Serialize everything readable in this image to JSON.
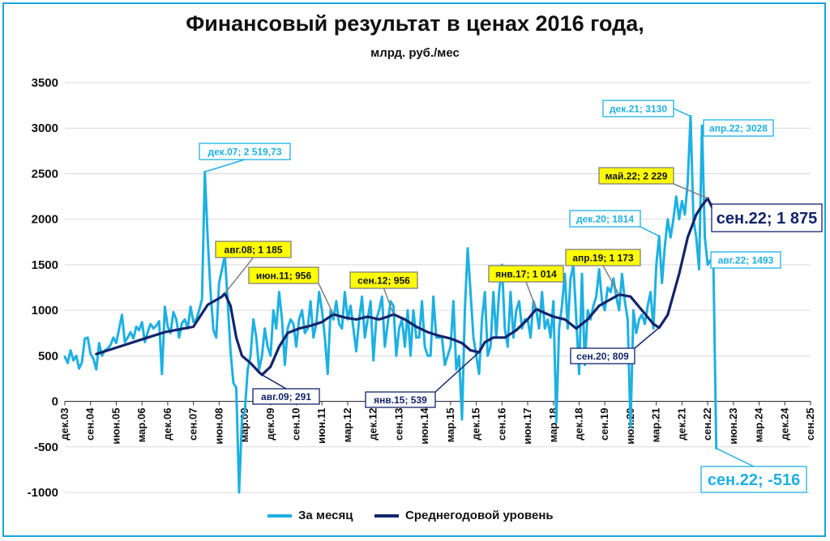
{
  "chart_data": {
    "type": "line",
    "title": "Финансовый результат в ценах 2016 года,",
    "subtitle": "млрд. руб./мес",
    "ylim": [
      -1000,
      3500
    ],
    "y_ticks": [
      "3500",
      "3000",
      "2500",
      "2000",
      "1500",
      "1000",
      "500",
      "0",
      "-500",
      "-1000"
    ],
    "x_ticks": [
      "дек.03",
      "сен.04",
      "июн.05",
      "мар.06",
      "дек.06",
      "сен.07",
      "июн.08",
      "мар.09",
      "дек.09",
      "сен.10",
      "июн.11",
      "мар.12",
      "дек.12",
      "сен.13",
      "июн.14",
      "мар.15",
      "дек.15",
      "сен.16",
      "июн.17",
      "мар.18",
      "дек.18",
      "сен.19",
      "июн.20",
      "мар.21",
      "дек.21",
      "сен.22",
      "июн.23",
      "мар.24",
      "дек.24",
      "сен.25"
    ],
    "grid": true,
    "legend_position": "bottom",
    "series": [
      {
        "name": "За месяц",
        "color": "#1eb0e3",
        "points": [
          [
            0,
            490
          ],
          [
            1,
            420
          ],
          [
            2,
            560
          ],
          [
            3,
            450
          ],
          [
            4,
            500
          ],
          [
            5,
            360
          ],
          [
            6,
            430
          ],
          [
            7,
            690
          ],
          [
            8,
            700
          ],
          [
            9,
            520
          ],
          [
            10,
            470
          ],
          [
            11,
            350
          ],
          [
            12,
            640
          ],
          [
            13,
            500
          ],
          [
            14,
            560
          ],
          [
            15,
            580
          ],
          [
            16,
            620
          ],
          [
            17,
            700
          ],
          [
            18,
            640
          ],
          [
            19,
            800
          ],
          [
            20,
            950
          ],
          [
            21,
            650
          ],
          [
            22,
            700
          ],
          [
            23,
            760
          ],
          [
            24,
            690
          ],
          [
            25,
            820
          ],
          [
            26,
            780
          ],
          [
            27,
            870
          ],
          [
            28,
            650
          ],
          [
            29,
            760
          ],
          [
            30,
            850
          ],
          [
            31,
            800
          ],
          [
            32,
            830
          ],
          [
            33,
            880
          ],
          [
            34,
            300
          ],
          [
            35,
            1040
          ],
          [
            36,
            820
          ],
          [
            37,
            750
          ],
          [
            38,
            980
          ],
          [
            39,
            900
          ],
          [
            40,
            700
          ],
          [
            41,
            860
          ],
          [
            42,
            900
          ],
          [
            43,
            800
          ],
          [
            44,
            1040
          ],
          [
            45,
            870
          ],
          [
            46,
            900
          ],
          [
            47,
            1000
          ],
          [
            48,
            1120
          ],
          [
            49,
            2520
          ],
          [
            50,
            1800
          ],
          [
            51,
            1200
          ],
          [
            52,
            780
          ],
          [
            53,
            700
          ],
          [
            54,
            1300
          ],
          [
            55,
            1450
          ],
          [
            56,
            1600
          ],
          [
            57,
            1100
          ],
          [
            58,
            550
          ],
          [
            59,
            200
          ],
          [
            60,
            150
          ],
          [
            61,
            -1000
          ],
          [
            62,
            -200
          ],
          [
            63,
            -100
          ],
          [
            64,
            350
          ],
          [
            65,
            500
          ],
          [
            66,
            900
          ],
          [
            67,
            700
          ],
          [
            68,
            350
          ],
          [
            69,
            500
          ],
          [
            70,
            800
          ],
          [
            71,
            600
          ],
          [
            72,
            500
          ],
          [
            73,
            1000
          ],
          [
            74,
            800
          ],
          [
            75,
            1200
          ],
          [
            76,
            900
          ],
          [
            77,
            400
          ],
          [
            78,
            800
          ],
          [
            79,
            900
          ],
          [
            80,
            850
          ],
          [
            81,
            600
          ],
          [
            82,
            900
          ],
          [
            83,
            1000
          ],
          [
            84,
            750
          ],
          [
            85,
            800
          ],
          [
            86,
            1100
          ],
          [
            87,
            700
          ],
          [
            88,
            850
          ],
          [
            89,
            1200
          ],
          [
            90,
            1000
          ],
          [
            91,
            700
          ],
          [
            92,
            300
          ],
          [
            93,
            1000
          ],
          [
            94,
            900
          ],
          [
            95,
            1100
          ],
          [
            96,
            850
          ],
          [
            97,
            800
          ],
          [
            98,
            1200
          ],
          [
            99,
            900
          ],
          [
            100,
            1050
          ],
          [
            101,
            800
          ],
          [
            102,
            550
          ],
          [
            103,
            900
          ],
          [
            104,
            1150
          ],
          [
            105,
            700
          ],
          [
            106,
            900
          ],
          [
            107,
            1100
          ],
          [
            108,
            450
          ],
          [
            109,
            900
          ],
          [
            110,
            1000
          ],
          [
            111,
            1150
          ],
          [
            112,
            600
          ],
          [
            113,
            850
          ],
          [
            114,
            1100
          ],
          [
            115,
            1050
          ],
          [
            116,
            500
          ],
          [
            117,
            800
          ],
          [
            118,
            900
          ],
          [
            119,
            600
          ],
          [
            120,
            1000
          ],
          [
            121,
            500
          ],
          [
            122,
            1000
          ],
          [
            123,
            700
          ],
          [
            124,
            700
          ],
          [
            125,
            1100
          ],
          [
            126,
            600
          ],
          [
            127,
            500
          ],
          [
            128,
            500
          ],
          [
            129,
            1150
          ],
          [
            130,
            700
          ],
          [
            131,
            700
          ],
          [
            132,
            700
          ],
          [
            133,
            400
          ],
          [
            134,
            500
          ],
          [
            135,
            600
          ],
          [
            136,
            1100
          ],
          [
            137,
            350
          ],
          [
            138,
            500
          ],
          [
            139,
            -200
          ],
          [
            140,
            1000
          ],
          [
            141,
            1680
          ],
          [
            142,
            1200
          ],
          [
            143,
            700
          ],
          [
            144,
            500
          ],
          [
            145,
            300
          ],
          [
            146,
            900
          ],
          [
            147,
            1200
          ],
          [
            148,
            500
          ],
          [
            149,
            600
          ],
          [
            150,
            1200
          ],
          [
            151,
            700
          ],
          [
            152,
            1200
          ],
          [
            153,
            1500
          ],
          [
            154,
            800
          ],
          [
            155,
            600
          ],
          [
            156,
            1200
          ],
          [
            157,
            700
          ],
          [
            158,
            1000
          ],
          [
            159,
            1100
          ],
          [
            160,
            800
          ],
          [
            161,
            900
          ],
          [
            162,
            900
          ],
          [
            163,
            700
          ],
          [
            164,
            1100
          ],
          [
            165,
            1000
          ],
          [
            166,
            800
          ],
          [
            167,
            1200
          ],
          [
            168,
            800
          ],
          [
            169,
            900
          ],
          [
            170,
            700
          ],
          [
            171,
            1100
          ],
          [
            172,
            -230
          ],
          [
            173,
            800
          ],
          [
            174,
            1050
          ],
          [
            175,
            1400
          ],
          [
            176,
            800
          ],
          [
            177,
            1350
          ],
          [
            178,
            1500
          ],
          [
            179,
            900
          ],
          [
            180,
            300
          ],
          [
            181,
            1400
          ],
          [
            182,
            400
          ],
          [
            183,
            1000
          ],
          [
            184,
            900
          ],
          [
            185,
            1050
          ],
          [
            186,
            1150
          ],
          [
            187,
            1450
          ],
          [
            188,
            1100
          ],
          [
            189,
            1000
          ],
          [
            190,
            1250
          ],
          [
            191,
            1200
          ],
          [
            192,
            1350
          ],
          [
            193,
            1150
          ],
          [
            194,
            1000
          ],
          [
            195,
            1400
          ],
          [
            196,
            1100
          ],
          [
            197,
            900
          ],
          [
            198,
            -280
          ],
          [
            199,
            1000
          ],
          [
            200,
            750
          ],
          [
            201,
            900
          ],
          [
            202,
            950
          ],
          [
            203,
            850
          ],
          [
            204,
            1050
          ],
          [
            205,
            1200
          ],
          [
            206,
            800
          ],
          [
            207,
            1500
          ],
          [
            208,
            1814
          ],
          [
            209,
            1300
          ],
          [
            210,
            1700
          ],
          [
            211,
            2000
          ],
          [
            212,
            1800
          ],
          [
            213,
            2000
          ],
          [
            214,
            2250
          ],
          [
            215,
            2000
          ],
          [
            216,
            2200
          ],
          [
            217,
            2050
          ],
          [
            218,
            2400
          ],
          [
            219,
            3130
          ],
          [
            220,
            2000
          ],
          [
            221,
            1800
          ],
          [
            222,
            1450
          ],
          [
            223,
            3028
          ],
          [
            224,
            1800
          ],
          [
            225,
            1500
          ],
          [
            226,
            1550
          ],
          [
            227,
            1493
          ],
          [
            228,
            -516
          ]
        ]
      },
      {
        "name": "Среднегодовой уровень",
        "color": "#12246b",
        "points": [
          [
            11,
            520
          ],
          [
            15,
            560
          ],
          [
            20,
            610
          ],
          [
            25,
            660
          ],
          [
            30,
            710
          ],
          [
            35,
            760
          ],
          [
            40,
            790
          ],
          [
            45,
            820
          ],
          [
            50,
            1060
          ],
          [
            55,
            1150
          ],
          [
            56,
            1185
          ],
          [
            58,
            1050
          ],
          [
            60,
            700
          ],
          [
            62,
            500
          ],
          [
            65,
            420
          ],
          [
            68,
            320
          ],
          [
            69,
            291
          ],
          [
            72,
            380
          ],
          [
            75,
            600
          ],
          [
            78,
            750
          ],
          [
            82,
            800
          ],
          [
            86,
            830
          ],
          [
            90,
            870
          ],
          [
            94,
            956
          ],
          [
            98,
            920
          ],
          [
            102,
            900
          ],
          [
            106,
            930
          ],
          [
            110,
            900
          ],
          [
            113,
            930
          ],
          [
            115,
            956
          ],
          [
            119,
            900
          ],
          [
            123,
            820
          ],
          [
            127,
            760
          ],
          [
            131,
            720
          ],
          [
            135,
            690
          ],
          [
            139,
            640
          ],
          [
            142,
            560
          ],
          [
            145,
            539
          ],
          [
            147,
            650
          ],
          [
            150,
            700
          ],
          [
            154,
            700
          ],
          [
            158,
            780
          ],
          [
            162,
            900
          ],
          [
            165,
            1014
          ],
          [
            168,
            970
          ],
          [
            171,
            930
          ],
          [
            175,
            900
          ],
          [
            179,
            800
          ],
          [
            183,
            900
          ],
          [
            187,
            1050
          ],
          [
            191,
            1120
          ],
          [
            194,
            1173
          ],
          [
            198,
            1150
          ],
          [
            202,
            1000
          ],
          [
            206,
            850
          ],
          [
            208,
            809
          ],
          [
            211,
            950
          ],
          [
            215,
            1400
          ],
          [
            218,
            1800
          ],
          [
            221,
            2050
          ],
          [
            223,
            2150
          ],
          [
            225,
            2229
          ],
          [
            227,
            2100
          ],
          [
            229,
            1875
          ]
        ]
      }
    ],
    "annotations": [
      {
        "text": "дек.07; 2 519,73",
        "style": "light"
      },
      {
        "text": "авг.08; 1 185",
        "style": "yellow"
      },
      {
        "text": "авг.09; 291",
        "style": "dark"
      },
      {
        "text": "июн.11; 956",
        "style": "yellow"
      },
      {
        "text": "сен.12; 956",
        "style": "yellow"
      },
      {
        "text": "янв.15; 539",
        "style": "dark"
      },
      {
        "text": "янв.17; 1 014",
        "style": "yellow"
      },
      {
        "text": "апр.19; 1 173",
        "style": "yellow"
      },
      {
        "text": "сен.20; 809",
        "style": "dark"
      },
      {
        "text": "дек.20; 1814",
        "style": "light"
      },
      {
        "text": "дек.21; 3130",
        "style": "light"
      },
      {
        "text": "апр.22; 3028",
        "style": "light"
      },
      {
        "text": "май.22; 2 229",
        "style": "yellow"
      },
      {
        "text": "сен.22; 1 875",
        "style": "dark-big"
      },
      {
        "text": "авг.22; 1493",
        "style": "light"
      },
      {
        "text": "сен.22; -516",
        "style": "light-big"
      }
    ]
  }
}
